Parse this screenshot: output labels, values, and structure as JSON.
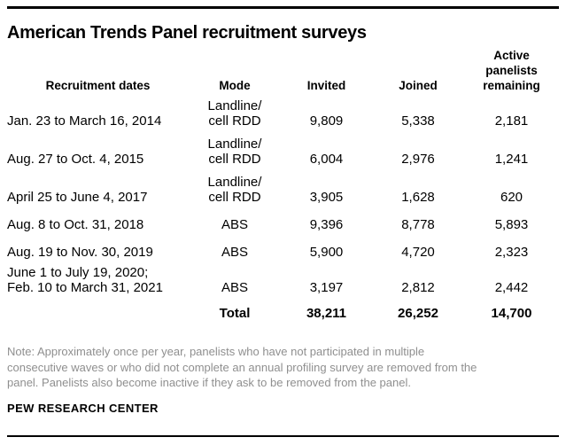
{
  "title": "American Trends Panel recruitment surveys",
  "colors": {
    "text": "#000000",
    "note_text": "#8f8f8f",
    "rule": "#000000",
    "background": "#ffffff"
  },
  "display": {
    "columns": {
      "dates": "Recruitment dates",
      "mode": "Mode",
      "invited": "Invited",
      "joined": "Joined",
      "active": "Active\npanelists\nremaining"
    },
    "rows": [
      {
        "dates": "Jan. 23 to March 16, 2014",
        "mode": "Landline/\ncell RDD",
        "invited": "9,809",
        "joined": "5,338",
        "active": "2,181"
      },
      {
        "dates": "Aug. 27 to Oct. 4, 2015",
        "mode": "Landline/\ncell RDD",
        "invited": "6,004",
        "joined": "2,976",
        "active": "1,241"
      },
      {
        "dates": "April 25 to June 4, 2017",
        "mode": "Landline/\ncell RDD",
        "invited": "3,905",
        "joined": "1,628",
        "active": "620"
      },
      {
        "dates": "Aug. 8 to Oct. 31, 2018",
        "mode": "ABS",
        "invited": "9,396",
        "joined": "8,778",
        "active": "5,893"
      },
      {
        "dates": "Aug. 19 to Nov. 30, 2019",
        "mode": "ABS",
        "invited": "5,900",
        "joined": "4,720",
        "active": "2,323"
      },
      {
        "dates": "June 1 to July 19, 2020;\nFeb. 10 to March 31, 2021",
        "mode": "ABS",
        "invited": "3,197",
        "joined": "2,812",
        "active": "2,442"
      }
    ],
    "total": {
      "label": "Total",
      "invited": "38,211",
      "joined": "26,252",
      "active": "14,700"
    }
  },
  "chart_data": {
    "type": "table",
    "title": "American Trends Panel recruitment surveys",
    "columns": [
      "Recruitment dates",
      "Mode",
      "Invited",
      "Joined",
      "Active panelists remaining"
    ],
    "rows": [
      [
        "Jan. 23 to March 16, 2014",
        "Landline/cell RDD",
        9809,
        5338,
        2181
      ],
      [
        "Aug. 27 to Oct. 4, 2015",
        "Landline/cell RDD",
        6004,
        2976,
        1241
      ],
      [
        "April 25 to June 4, 2017",
        "Landline/cell RDD",
        3905,
        1628,
        620
      ],
      [
        "Aug. 8 to Oct. 31, 2018",
        "ABS",
        9396,
        8778,
        5893
      ],
      [
        "Aug. 19 to Nov. 30, 2019",
        "ABS",
        5900,
        4720,
        2323
      ],
      [
        "June 1 to July 19, 2020; Feb. 10 to March 31, 2021",
        "ABS",
        3197,
        2812,
        2442
      ]
    ],
    "total_row": [
      "",
      "Total",
      38211,
      26252,
      14700
    ],
    "note": "Note: Approximately once per year, panelists who have not participated in multiple consecutive waves or who did not complete an annual profiling survey are removed from the panel. Panelists also become inactive if they ask to be removed from the panel.",
    "source": "PEW RESEARCH CENTER"
  },
  "note": "Note: Approximately once per year, panelists who have not participated in multiple\nconsecutive waves or who did not complete an annual profiling survey are removed from the\npanel. Panelists also become inactive if they ask to be removed from the panel.",
  "source": "PEW RESEARCH CENTER"
}
